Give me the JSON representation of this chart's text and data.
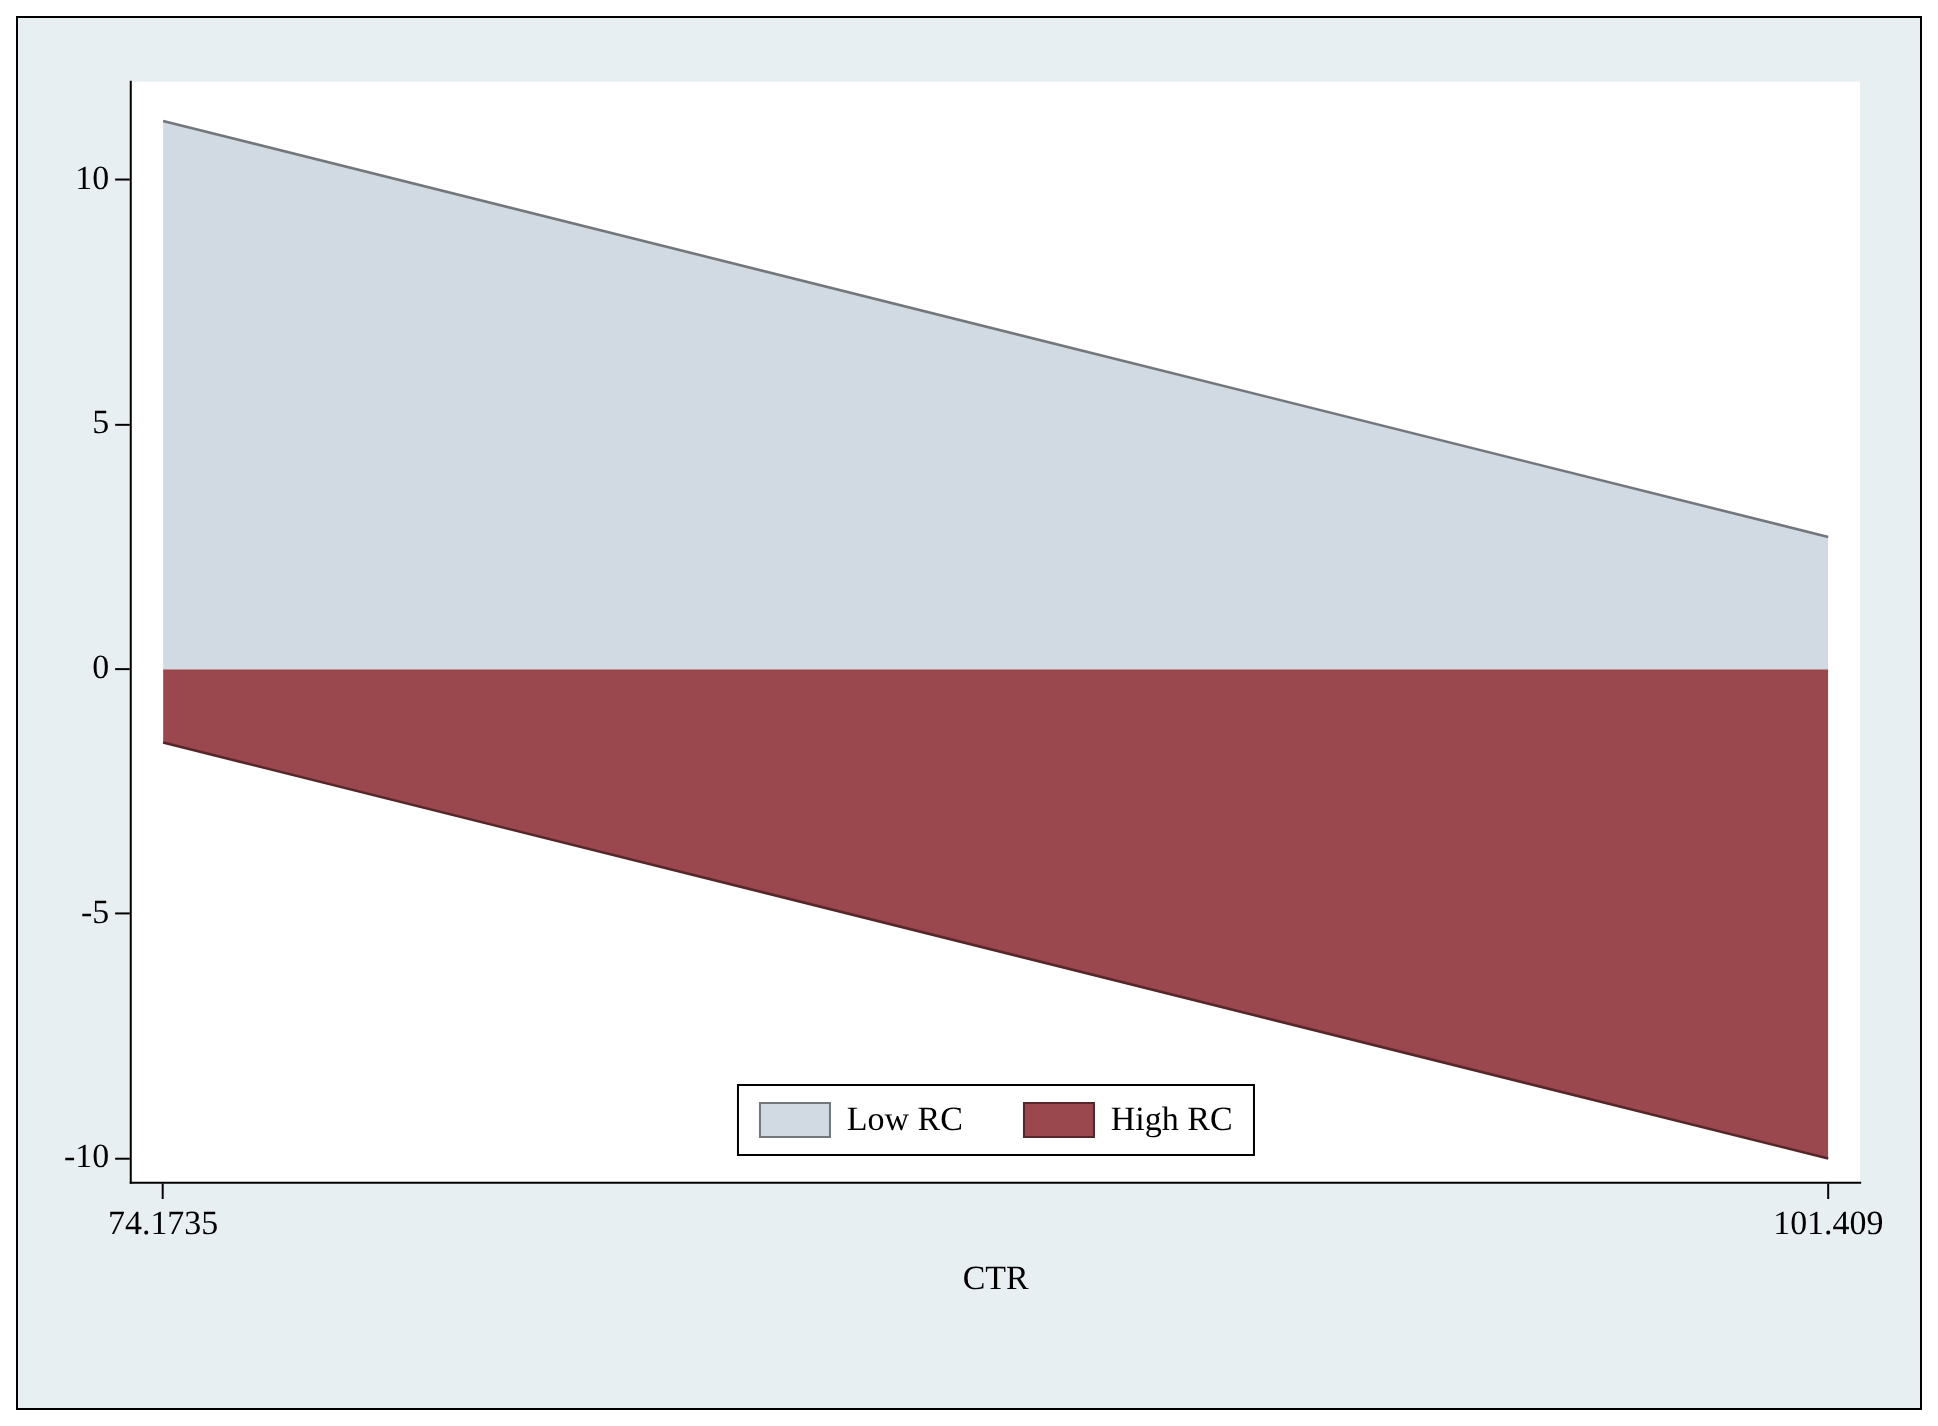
{
  "chart_data": {
    "type": "area",
    "xlabel": "CTR",
    "x": [
      74.1735,
      101.409
    ],
    "series": [
      {
        "name": "Low RC",
        "color": "#d1d9e2",
        "values": [
          11.2,
          2.7
        ]
      },
      {
        "name": "High RC",
        "color": "#9a474d",
        "values": [
          -1.5,
          -10.0
        ]
      }
    ],
    "xlim": [
      73.65,
      101.93
    ],
    "xticks": [
      74.1735,
      101.409
    ],
    "ylim": [
      -10.5,
      12
    ],
    "yticks": [
      -10,
      -5,
      0,
      5,
      10
    ],
    "grid": false,
    "legend": "bottom"
  }
}
